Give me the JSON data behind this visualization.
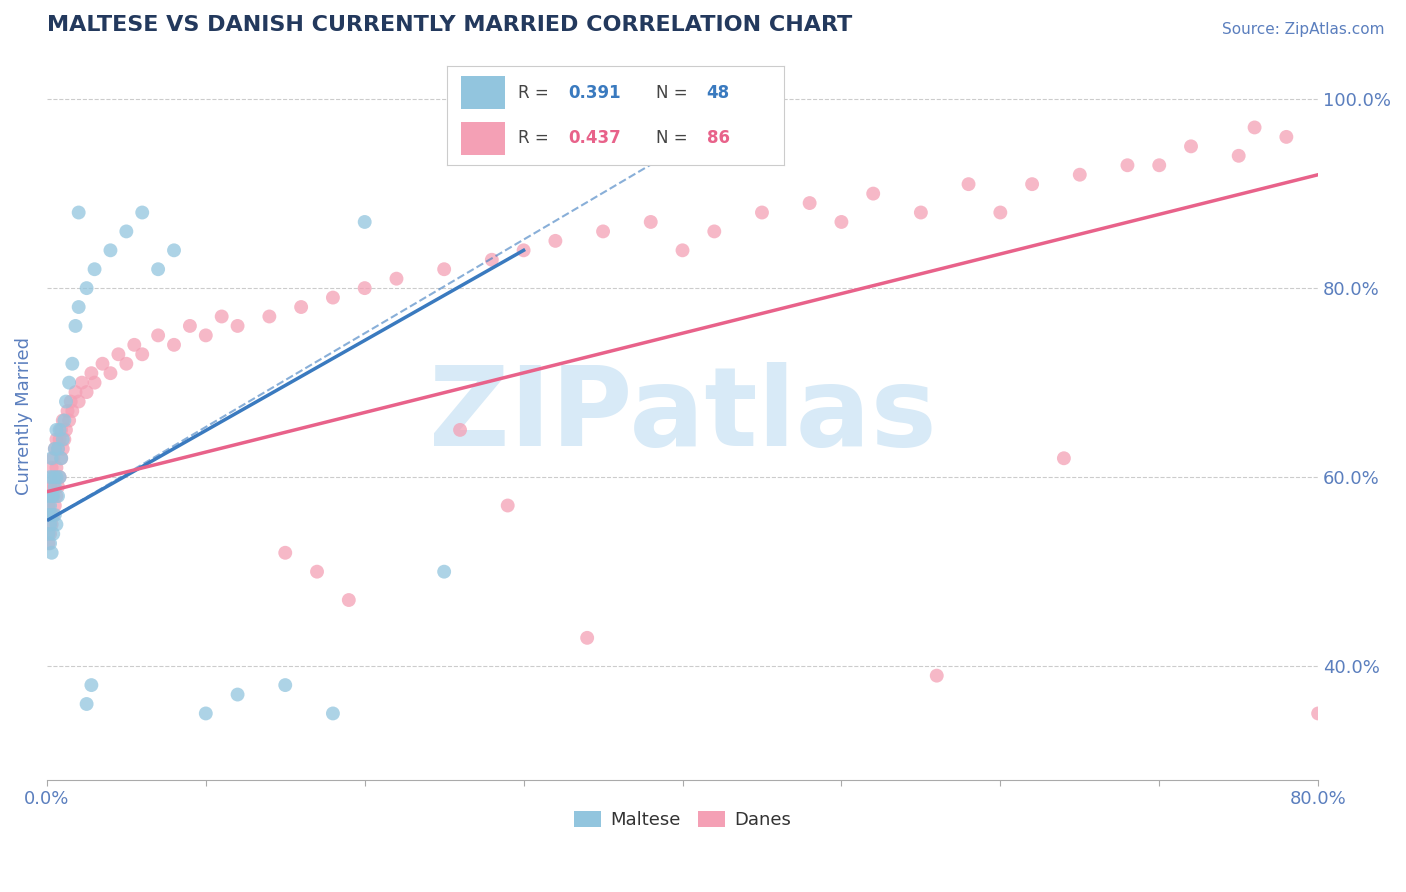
{
  "title": "MALTESE VS DANISH CURRENTLY MARRIED CORRELATION CHART",
  "source_text": "Source: ZipAtlas.com",
  "xlabel": "",
  "ylabel": "Currently Married",
  "xlim": [
    0.0,
    0.8
  ],
  "ylim": [
    0.28,
    1.05
  ],
  "yticks": [
    0.4,
    0.6,
    0.8,
    1.0
  ],
  "ytick_labels": [
    "40.0%",
    "60.0%",
    "80.0%",
    "100.0%"
  ],
  "xticks": [
    0.0,
    0.1,
    0.2,
    0.3,
    0.4,
    0.5,
    0.6,
    0.7,
    0.8
  ],
  "xtick_labels": [
    "0.0%",
    "",
    "",
    "",
    "",
    "",
    "",
    "",
    "80.0%"
  ],
  "maltese_color": "#92c5de",
  "danes_color": "#f4a0b5",
  "maltese_trend_color": "#3a7abf",
  "danes_trend_color": "#e8628a",
  "title_color": "#23395d",
  "tick_label_color": "#5b7fbe",
  "watermark_color": "#d8eaf7",
  "watermark_text": "ZIPatlas",
  "background_color": "#ffffff",
  "maltese_x": [
    0.001,
    0.001,
    0.001,
    0.002,
    0.002,
    0.002,
    0.002,
    0.003,
    0.003,
    0.003,
    0.003,
    0.004,
    0.004,
    0.004,
    0.005,
    0.005,
    0.005,
    0.006,
    0.006,
    0.006,
    0.007,
    0.007,
    0.008,
    0.008,
    0.009,
    0.01,
    0.011,
    0.012,
    0.014,
    0.016,
    0.018,
    0.02,
    0.025,
    0.03,
    0.04,
    0.05,
    0.06,
    0.07,
    0.08,
    0.1,
    0.12,
    0.15,
    0.18,
    0.02,
    0.025,
    0.028,
    0.2,
    0.25
  ],
  "maltese_y": [
    0.54,
    0.56,
    0.58,
    0.53,
    0.55,
    0.57,
    0.6,
    0.52,
    0.56,
    0.58,
    0.62,
    0.54,
    0.58,
    0.6,
    0.56,
    0.59,
    0.63,
    0.55,
    0.6,
    0.65,
    0.58,
    0.63,
    0.6,
    0.65,
    0.62,
    0.64,
    0.66,
    0.68,
    0.7,
    0.72,
    0.76,
    0.78,
    0.8,
    0.82,
    0.84,
    0.86,
    0.88,
    0.82,
    0.84,
    0.35,
    0.37,
    0.38,
    0.35,
    0.88,
    0.36,
    0.38,
    0.87,
    0.5
  ],
  "danes_x": [
    0.001,
    0.001,
    0.002,
    0.002,
    0.002,
    0.003,
    0.003,
    0.003,
    0.004,
    0.004,
    0.004,
    0.005,
    0.005,
    0.005,
    0.006,
    0.006,
    0.006,
    0.007,
    0.007,
    0.008,
    0.008,
    0.009,
    0.009,
    0.01,
    0.01,
    0.011,
    0.012,
    0.013,
    0.014,
    0.015,
    0.016,
    0.018,
    0.02,
    0.022,
    0.025,
    0.028,
    0.03,
    0.035,
    0.04,
    0.045,
    0.05,
    0.055,
    0.06,
    0.07,
    0.08,
    0.09,
    0.1,
    0.11,
    0.12,
    0.14,
    0.16,
    0.18,
    0.2,
    0.22,
    0.25,
    0.28,
    0.3,
    0.32,
    0.35,
    0.38,
    0.4,
    0.42,
    0.45,
    0.48,
    0.5,
    0.52,
    0.55,
    0.58,
    0.6,
    0.62,
    0.65,
    0.68,
    0.7,
    0.72,
    0.75,
    0.78,
    0.26,
    0.29,
    0.34,
    0.56,
    0.64,
    0.76,
    0.15,
    0.17,
    0.19,
    0.8
  ],
  "danes_y": [
    0.53,
    0.57,
    0.54,
    0.56,
    0.59,
    0.55,
    0.58,
    0.61,
    0.56,
    0.59,
    0.62,
    0.57,
    0.6,
    0.63,
    0.58,
    0.61,
    0.64,
    0.59,
    0.63,
    0.6,
    0.64,
    0.62,
    0.65,
    0.63,
    0.66,
    0.64,
    0.65,
    0.67,
    0.66,
    0.68,
    0.67,
    0.69,
    0.68,
    0.7,
    0.69,
    0.71,
    0.7,
    0.72,
    0.71,
    0.73,
    0.72,
    0.74,
    0.73,
    0.75,
    0.74,
    0.76,
    0.75,
    0.77,
    0.76,
    0.77,
    0.78,
    0.79,
    0.8,
    0.81,
    0.82,
    0.83,
    0.84,
    0.85,
    0.86,
    0.87,
    0.84,
    0.86,
    0.88,
    0.89,
    0.87,
    0.9,
    0.88,
    0.91,
    0.88,
    0.91,
    0.92,
    0.93,
    0.93,
    0.95,
    0.94,
    0.96,
    0.65,
    0.57,
    0.43,
    0.39,
    0.62,
    0.97,
    0.52,
    0.5,
    0.47,
    0.35
  ],
  "maltese_trend_x": [
    0.001,
    0.3
  ],
  "maltese_trend_y": [
    0.555,
    0.84
  ],
  "danes_trend_x": [
    0.001,
    0.8
  ],
  "danes_trend_y": [
    0.585,
    0.92
  ]
}
